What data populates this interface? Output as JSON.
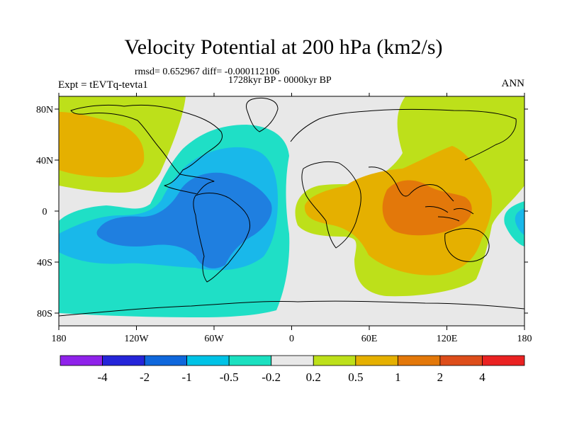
{
  "title": "Velocity Potential at 200 hPa (km2/s)",
  "stats": "rmsd= 0.652967  diff= -0.000112106",
  "period": "1728kyr BP - 0000kyr BP",
  "experiment": "Expt = tEVTq-tevta1",
  "season": "ANN",
  "map": {
    "lat_ticks": [
      {
        "label": "80N",
        "lat": 80
      },
      {
        "label": "40N",
        "lat": 40
      },
      {
        "label": "0",
        "lat": 0
      },
      {
        "label": "40S",
        "lat": -40
      },
      {
        "label": "80S",
        "lat": -80
      }
    ],
    "lon_ticks": [
      {
        "label": "180",
        "lon": -180
      },
      {
        "label": "120W",
        "lon": -120
      },
      {
        "label": "60W",
        "lon": -60
      },
      {
        "label": "0",
        "lon": 0
      },
      {
        "label": "60E",
        "lon": 60
      },
      {
        "label": "120E",
        "lon": 120
      },
      {
        "label": "180",
        "lon": 180
      }
    ],
    "lat_range": [
      -90,
      90
    ],
    "lon_range": [
      -180,
      180
    ]
  },
  "colorbar": {
    "colors": [
      "#8f22ea",
      "#2525d9",
      "#0f67dc",
      "#00c3e6",
      "#1be0c0",
      "#e8e8e8",
      "#bde01a",
      "#e5b000",
      "#e3780a",
      "#dd4d1a",
      "#ea2222"
    ],
    "labels": [
      "-4",
      "-2",
      "-1",
      "-0.5",
      "-0.2",
      "0.2",
      "0.5",
      "1",
      "2",
      "4"
    ]
  },
  "fill_colors": {
    "lt_neg_1": "#1f7fe0",
    "neg_1_to_05": "#19b8ea",
    "neg_05_to_02": "#1fdfc6",
    "neutral": "#e8e8e8",
    "pos_02_to_05": "#bde01a",
    "pos_05_to_1": "#e5b000",
    "pos_1_to_2": "#e3780a"
  }
}
